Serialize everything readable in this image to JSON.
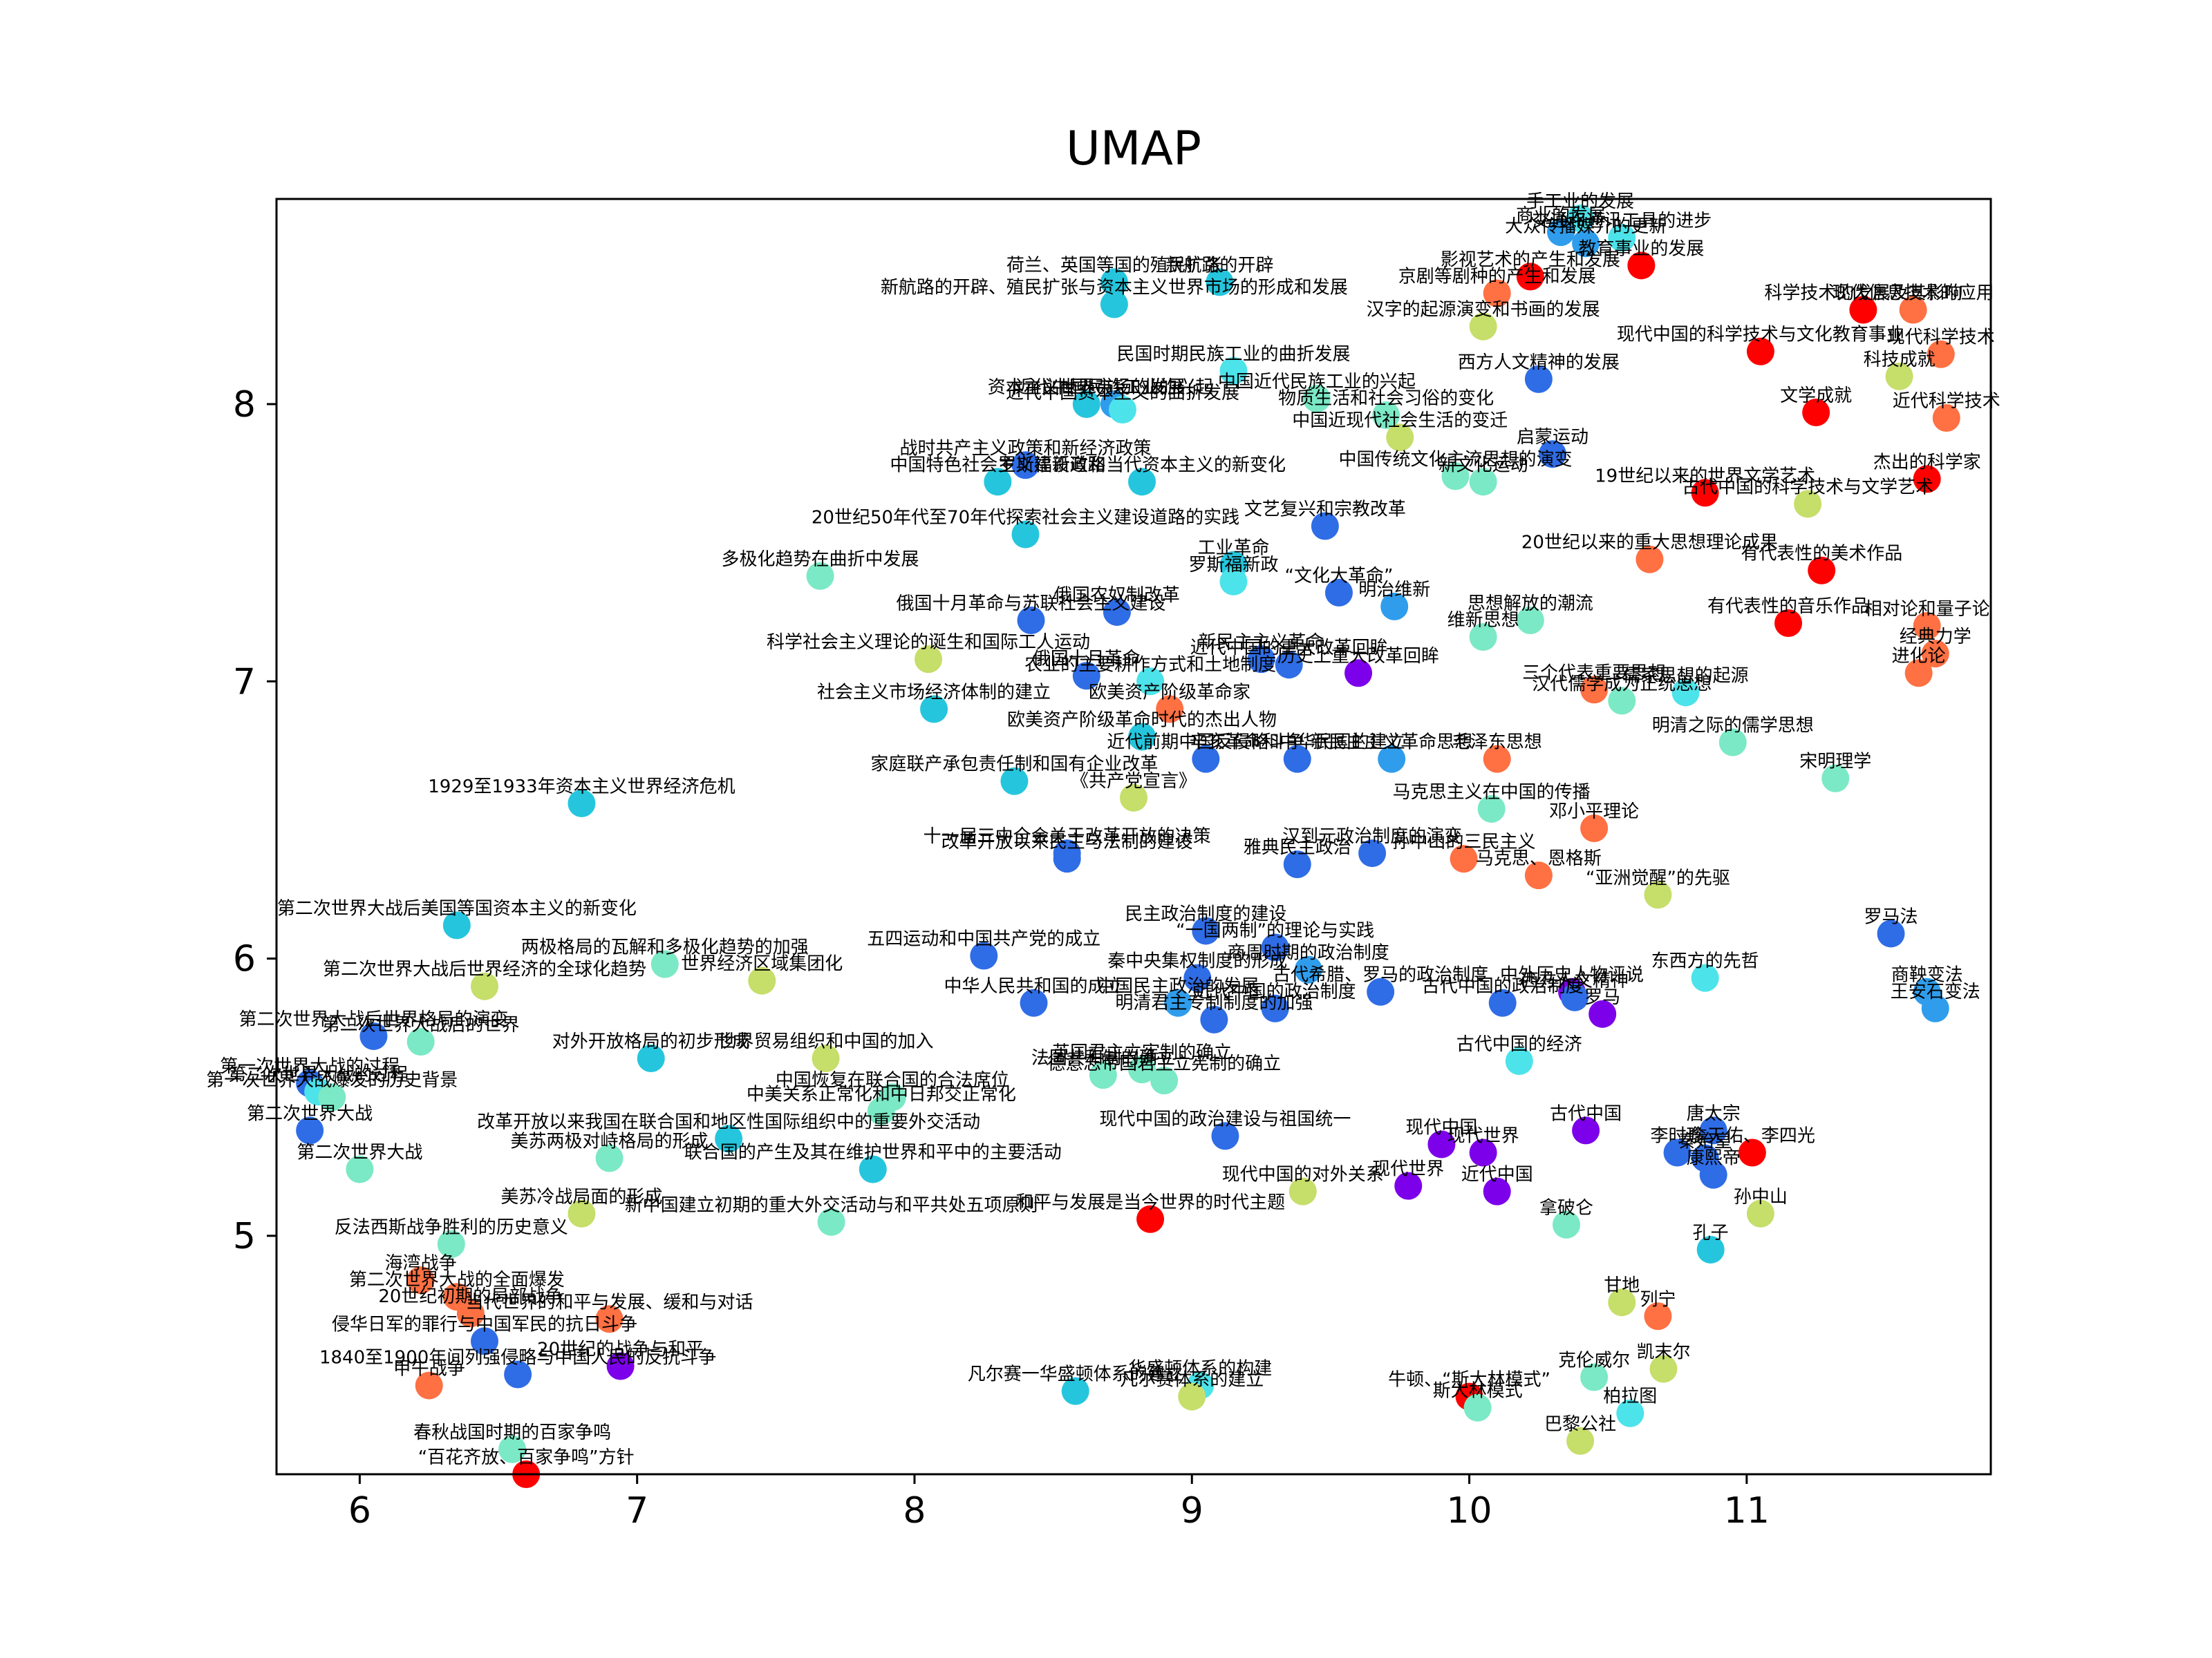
{
  "chart_data": {
    "type": "scatter",
    "title": "UMAP",
    "xlabel": "",
    "ylabel": "",
    "xlim": [
      5.7,
      11.88
    ],
    "ylim": [
      4.14,
      8.74
    ],
    "xticks": [
      6,
      7,
      8,
      9,
      10,
      11
    ],
    "yticks": [
      5,
      6,
      7,
      8
    ],
    "grid": false,
    "legend": "none",
    "colormap": "rainbow",
    "points": [
      {
        "label": "手工业的发展",
        "x": 10.4,
        "y": 8.67,
        "color": "#4de3ea"
      },
      {
        "label": "商业的发展",
        "x": 10.33,
        "y": 8.62,
        "color": "#2f9dec"
      },
      {
        "label": "交通和通讯工具的进步",
        "x": 10.55,
        "y": 8.6,
        "color": "#4de3ea"
      },
      {
        "label": "大众传播媒介的更新",
        "x": 10.42,
        "y": 8.58,
        "color": "#2f9dec"
      },
      {
        "label": "教育事业的发展",
        "x": 10.62,
        "y": 8.5,
        "color": "#ff0000"
      },
      {
        "label": "影视艺术的产生和发展",
        "x": 10.22,
        "y": 8.46,
        "color": "#ff0000"
      },
      {
        "label": "京剧等剧种的产生和发展",
        "x": 10.1,
        "y": 8.4,
        "color": "#ff7043"
      },
      {
        "label": "汉字的起源演变和书画的发展",
        "x": 10.05,
        "y": 8.28,
        "color": "#c6de6a"
      },
      {
        "label": "荷兰、英国等国的殖民扩张",
        "x": 8.72,
        "y": 8.44,
        "color": "#25c6dd"
      },
      {
        "label": "新航路的开辟",
        "x": 9.1,
        "y": 8.44,
        "color": "#25c6dd"
      },
      {
        "label": "新航路的开辟、殖民扩张与资本主义世界市场的形成和发展",
        "x": 8.72,
        "y": 8.36,
        "color": "#25c6dd"
      },
      {
        "label": "民国时期民族工业的曲折发展",
        "x": 9.15,
        "y": 8.12,
        "color": "#4de3ea"
      },
      {
        "label": "西方人文精神的发展",
        "x": 10.25,
        "y": 8.09,
        "color": "#2f6de6"
      },
      {
        "label": "现代中国的科学技术与文化教育事业",
        "x": 11.05,
        "y": 8.19,
        "color": "#ff0000"
      },
      {
        "label": "资本主义世界市场的发展",
        "x": 8.62,
        "y": 8.0,
        "color": "#25c6dd"
      },
      {
        "label": "近代中国民族工业的兴起",
        "x": 8.72,
        "y": 8.0,
        "color": "#2f9dec"
      },
      {
        "label": "近代中国资本主义的曲折发展",
        "x": 8.75,
        "y": 7.98,
        "color": "#4de3ea"
      },
      {
        "label": "中国近代民族工业的兴起",
        "x": 9.45,
        "y": 8.02,
        "color": "#7be9c5"
      },
      {
        "label": "物质生活和社会习俗的变化",
        "x": 9.7,
        "y": 7.96,
        "color": "#7be9c5"
      },
      {
        "label": "中国近现代社会生活的变迁",
        "x": 9.75,
        "y": 7.88,
        "color": "#c6de6a"
      },
      {
        "label": "战时共产主义政策和新经济政策",
        "x": 8.4,
        "y": 7.78,
        "color": "#2f6de6"
      },
      {
        "label": "中国特色社会主义建设道路",
        "x": 8.3,
        "y": 7.72,
        "color": "#25c6dd"
      },
      {
        "label": "罗斯福新政和当代资本主义的新变化",
        "x": 8.82,
        "y": 7.72,
        "color": "#25c6dd"
      },
      {
        "label": "中国传统文化主流思想的演变",
        "x": 9.95,
        "y": 7.74,
        "color": "#7be9c5"
      },
      {
        "label": "新文化运动",
        "x": 10.05,
        "y": 7.72,
        "color": "#7be9c5"
      },
      {
        "label": "启蒙运动",
        "x": 10.3,
        "y": 7.82,
        "color": "#2f6de6"
      },
      {
        "label": "19世纪以来的世界文学艺术",
        "x": 10.85,
        "y": 7.68,
        "color": "#ff0000"
      },
      {
        "label": "古代中国的科学技术与文学艺术",
        "x": 11.22,
        "y": 7.64,
        "color": "#c6de6a"
      },
      {
        "label": "杰出的科学家",
        "x": 11.65,
        "y": 7.73,
        "color": "#ff0000"
      },
      {
        "label": "科学技术的发展及其影响",
        "x": 11.42,
        "y": 8.34,
        "color": "#ff0000"
      },
      {
        "label": "现代信息技术的应用",
        "x": 11.6,
        "y": 8.34,
        "color": "#ff7043"
      },
      {
        "label": "现代科学技术",
        "x": 11.7,
        "y": 8.18,
        "color": "#ff7043"
      },
      {
        "label": "科技成就",
        "x": 11.55,
        "y": 8.1,
        "color": "#c6de6a"
      },
      {
        "label": "文学成就",
        "x": 11.25,
        "y": 7.97,
        "color": "#ff0000"
      },
      {
        "label": "近代科学技术",
        "x": 11.72,
        "y": 7.95,
        "color": "#ff7043"
      },
      {
        "label": "20世纪50年代至70年代探索社会主义建设道路的实践",
        "x": 8.4,
        "y": 7.53,
        "color": "#25c6dd"
      },
      {
        "label": "文艺复兴和宗教改革",
        "x": 9.48,
        "y": 7.56,
        "color": "#2f6de6"
      },
      {
        "label": "工业革命",
        "x": 9.15,
        "y": 7.42,
        "color": "#25c6dd"
      },
      {
        "label": "多极化趋势在曲折中发展",
        "x": 7.66,
        "y": 7.38,
        "color": "#7be9c5"
      },
      {
        "label": "罗斯福新政",
        "x": 9.15,
        "y": 7.36,
        "color": "#4de3ea"
      },
      {
        "label": "“文化大革命”",
        "x": 9.53,
        "y": 7.32,
        "color": "#2f6de6"
      },
      {
        "label": "明治维新",
        "x": 9.73,
        "y": 7.27,
        "color": "#2f9dec"
      },
      {
        "label": "20世纪以来的重大思想理论成果",
        "x": 10.65,
        "y": 7.44,
        "color": "#ff7043"
      },
      {
        "label": "有代表性的美术作品",
        "x": 11.27,
        "y": 7.4,
        "color": "#ff0000"
      },
      {
        "label": "俄国十月革命与苏联社会主义建设",
        "x": 8.42,
        "y": 7.22,
        "color": "#2f6de6"
      },
      {
        "label": "俄国农奴制改革",
        "x": 8.73,
        "y": 7.25,
        "color": "#2f6de6"
      },
      {
        "label": "思想解放的潮流",
        "x": 10.22,
        "y": 7.22,
        "color": "#7be9c5"
      },
      {
        "label": "维新思想",
        "x": 10.05,
        "y": 7.16,
        "color": "#7be9c5"
      },
      {
        "label": "有代表性的音乐作品",
        "x": 11.15,
        "y": 7.21,
        "color": "#ff0000"
      },
      {
        "label": "相对论和量子论",
        "x": 11.65,
        "y": 7.2,
        "color": "#ff7043"
      },
      {
        "label": "经典力学",
        "x": 11.68,
        "y": 7.1,
        "color": "#ff7043"
      },
      {
        "label": "进化论",
        "x": 11.62,
        "y": 7.03,
        "color": "#ff7043"
      },
      {
        "label": "科学社会主义理论的诞生和国际工人运动",
        "x": 8.05,
        "y": 7.08,
        "color": "#c6de6a"
      },
      {
        "label": "新民主主义革命",
        "x": 9.25,
        "y": 7.08,
        "color": "#2f6de6"
      },
      {
        "label": "近代中国的重大改革回眸",
        "x": 9.35,
        "y": 7.06,
        "color": "#2f6de6"
      },
      {
        "label": "历史上重大改革回眸",
        "x": 9.6,
        "y": 7.03,
        "color": "#7d00ea"
      },
      {
        "label": "俄国十月革命",
        "x": 8.62,
        "y": 7.02,
        "color": "#2f6de6"
      },
      {
        "label": "农业的主要耕作方式和土地制度",
        "x": 8.85,
        "y": 7.0,
        "color": "#4de3ea"
      },
      {
        "label": "欧美资产阶级革命家",
        "x": 8.92,
        "y": 6.9,
        "color": "#ff7043"
      },
      {
        "label": "社会主义市场经济体制的建立",
        "x": 8.07,
        "y": 6.9,
        "color": "#25c6dd"
      },
      {
        "label": "三个代表重要思想",
        "x": 10.45,
        "y": 6.97,
        "color": "#ff7043"
      },
      {
        "label": "汉代儒学成为正统思想",
        "x": 10.55,
        "y": 6.93,
        "color": "#7be9c5"
      },
      {
        "label": "儒家思想的起源",
        "x": 10.78,
        "y": 6.96,
        "color": "#4de3ea"
      },
      {
        "label": "明清之际的儒学思想",
        "x": 10.95,
        "y": 6.78,
        "color": "#7be9c5"
      },
      {
        "label": "宋明理学",
        "x": 11.32,
        "y": 6.65,
        "color": "#7be9c5"
      },
      {
        "label": "欧美资产阶级革命时代的杰出人物",
        "x": 8.82,
        "y": 6.8,
        "color": "#25c6dd"
      },
      {
        "label": "近代前期中国反侵略斗争",
        "x": 9.05,
        "y": 6.72,
        "color": "#2f6de6"
      },
      {
        "label": "辛亥革命和中华民国的建立",
        "x": 9.38,
        "y": 6.72,
        "color": "#2f6de6"
      },
      {
        "label": "新民主主义革命思想",
        "x": 9.72,
        "y": 6.72,
        "color": "#2f9dec"
      },
      {
        "label": "毛泽东思想",
        "x": 10.1,
        "y": 6.72,
        "color": "#ff7043"
      },
      {
        "label": "家庭联产承包责任制和国有企业改革",
        "x": 8.36,
        "y": 6.64,
        "color": "#25c6dd"
      },
      {
        "label": "《共产党宣言》",
        "x": 8.79,
        "y": 6.58,
        "color": "#c6de6a"
      },
      {
        "label": "1929至1933年资本主义世界经济危机",
        "x": 6.8,
        "y": 6.56,
        "color": "#25c6dd"
      },
      {
        "label": "马克思主义在中国的传播",
        "x": 10.08,
        "y": 6.54,
        "color": "#7be9c5"
      },
      {
        "label": "邓小平理论",
        "x": 10.45,
        "y": 6.47,
        "color": "#ff7043"
      },
      {
        "label": "十一届三中全会关于改革开放的决策",
        "x": 8.55,
        "y": 6.38,
        "color": "#2f6de6"
      },
      {
        "label": "改革开放以来民主与法制的建设",
        "x": 8.55,
        "y": 6.36,
        "color": "#2f6de6"
      },
      {
        "label": "雅典民主政治",
        "x": 9.38,
        "y": 6.34,
        "color": "#2f6de6"
      },
      {
        "label": "孙中山的三民主义",
        "x": 9.98,
        "y": 6.36,
        "color": "#ff7043"
      },
      {
        "label": "马克思、恩格斯",
        "x": 10.25,
        "y": 6.3,
        "color": "#ff7043"
      },
      {
        "label": "“亚洲觉醒”的先驱",
        "x": 10.68,
        "y": 6.23,
        "color": "#c6de6a"
      },
      {
        "label": "汉到元政治制度的演变",
        "x": 9.65,
        "y": 6.38,
        "color": "#2f6de6"
      },
      {
        "label": "第二次世界大战后美国等国资本主义的新变化",
        "x": 6.35,
        "y": 6.12,
        "color": "#25c6dd"
      },
      {
        "label": "民主政治制度的建设",
        "x": 9.05,
        "y": 6.1,
        "color": "#2f6de6"
      },
      {
        "label": "“一国两制”的理论与实践",
        "x": 9.3,
        "y": 6.04,
        "color": "#2f6de6"
      },
      {
        "label": "五四运动和中国共产党的成立",
        "x": 8.25,
        "y": 6.01,
        "color": "#2f6de6"
      },
      {
        "label": "商周时期的政治制度",
        "x": 9.42,
        "y": 5.96,
        "color": "#2f9dec"
      },
      {
        "label": "罗马法",
        "x": 11.52,
        "y": 6.09,
        "color": "#2f6de6"
      },
      {
        "label": "两极格局的瓦解和多极化趋势的加强",
        "x": 7.1,
        "y": 5.98,
        "color": "#7be9c5"
      },
      {
        "label": "第二次世界大战后世界经济的全球化趋势",
        "x": 6.45,
        "y": 5.9,
        "color": "#c6de6a"
      },
      {
        "label": "世界经济区域集团化",
        "x": 7.45,
        "y": 5.92,
        "color": "#c6de6a"
      },
      {
        "label": "秦中央集权制度的形成",
        "x": 9.02,
        "y": 5.93,
        "color": "#2f6de6"
      },
      {
        "label": "古代希腊、罗马的政治制度",
        "x": 9.68,
        "y": 5.88,
        "color": "#2f6de6"
      },
      {
        "label": "中外历史人物评说",
        "x": 10.37,
        "y": 5.88,
        "color": "#7d00ea"
      },
      {
        "label": "东西方的先哲",
        "x": 10.85,
        "y": 5.93,
        "color": "#4de3ea"
      },
      {
        "label": "商鞅变法",
        "x": 11.65,
        "y": 5.88,
        "color": "#2f9dec"
      },
      {
        "label": "中华人民共和国的成立",
        "x": 8.43,
        "y": 5.84,
        "color": "#2f6de6"
      },
      {
        "label": "中国民主政治的发展",
        "x": 8.95,
        "y": 5.84,
        "color": "#2f9dec"
      },
      {
        "label": "近代中国的政治制度",
        "x": 9.3,
        "y": 5.82,
        "color": "#2f6de6"
      },
      {
        "label": "明清君主专制制度的加强",
        "x": 9.08,
        "y": 5.78,
        "color": "#2f6de6"
      },
      {
        "label": "古代中国的政治制度",
        "x": 10.12,
        "y": 5.84,
        "color": "#2f6de6"
      },
      {
        "label": "西方人文精神",
        "x": 10.38,
        "y": 5.86,
        "color": "#2f6de6"
      },
      {
        "label": "罗马",
        "x": 10.48,
        "y": 5.8,
        "color": "#7d00ea"
      },
      {
        "label": "王安石变法",
        "x": 11.68,
        "y": 5.82,
        "color": "#2f9dec"
      },
      {
        "label": "第二次世界大战后世界格局的演变",
        "x": 6.05,
        "y": 5.72,
        "color": "#2f6de6"
      },
      {
        "label": "第二次世界大战后的世界",
        "x": 6.22,
        "y": 5.7,
        "color": "#7be9c5"
      },
      {
        "label": "对外开放格局的初步形成",
        "x": 7.05,
        "y": 5.64,
        "color": "#25c6dd"
      },
      {
        "label": "世界贸易组织和中国的加入",
        "x": 7.68,
        "y": 5.64,
        "color": "#c6de6a"
      },
      {
        "label": "古代中国的经济",
        "x": 10.18,
        "y": 5.63,
        "color": "#4de3ea"
      },
      {
        "label": "法国共和制的确立",
        "x": 8.68,
        "y": 5.58,
        "color": "#7be9c5"
      },
      {
        "label": "英国君主立宪制的确立",
        "x": 8.82,
        "y": 5.6,
        "color": "#7be9c5"
      },
      {
        "label": "德意志帝国君主立宪制的确立",
        "x": 8.9,
        "y": 5.56,
        "color": "#7be9c5"
      },
      {
        "label": "第一次世界大战的过程",
        "x": 5.82,
        "y": 5.55,
        "color": "#2f6de6"
      },
      {
        "label": "第二次世界大战的过程",
        "x": 5.85,
        "y": 5.52,
        "color": "#4de3ea"
      },
      {
        "label": "第一次世界大战爆发的历史背景",
        "x": 5.9,
        "y": 5.5,
        "color": "#7be9c5"
      },
      {
        "label": "第二次世界大战",
        "x": 5.82,
        "y": 5.38,
        "color": "#2f6de6"
      },
      {
        "label": "中美关系正常化和中日邦交正常化",
        "x": 7.88,
        "y": 5.45,
        "color": "#7be9c5"
      },
      {
        "label": "中国恢复在联合国的合法席位",
        "x": 7.92,
        "y": 5.5,
        "color": "#7be9c5"
      },
      {
        "label": "现代中国的政治建设与祖国统一",
        "x": 9.12,
        "y": 5.36,
        "color": "#2f6de6"
      },
      {
        "label": "现代中国",
        "x": 9.9,
        "y": 5.33,
        "color": "#7d00ea"
      },
      {
        "label": "现代世界",
        "x": 10.05,
        "y": 5.3,
        "color": "#7d00ea"
      },
      {
        "label": "古代中国",
        "x": 10.42,
        "y": 5.38,
        "color": "#7d00ea"
      },
      {
        "label": "唐太宗",
        "x": 10.88,
        "y": 5.38,
        "color": "#2f6de6"
      },
      {
        "label": "李时珍",
        "x": 10.75,
        "y": 5.3,
        "color": "#2f6de6"
      },
      {
        "label": "秦始皇",
        "x": 10.85,
        "y": 5.28,
        "color": "#2f6de6"
      },
      {
        "label": "詹天佑、李四光",
        "x": 11.02,
        "y": 5.3,
        "color": "#ff0000"
      },
      {
        "label": "康熙帝",
        "x": 10.88,
        "y": 5.22,
        "color": "#2f6de6"
      },
      {
        "label": "改革开放以来我国在联合国和地区性国际组织中的重要外交活动",
        "x": 7.33,
        "y": 5.35,
        "color": "#25c6dd"
      },
      {
        "label": "美苏两极对峙格局的形成",
        "x": 6.9,
        "y": 5.28,
        "color": "#7be9c5"
      },
      {
        "label": "联合国的产生及其在维护世界和平中的主要活动",
        "x": 7.85,
        "y": 5.24,
        "color": "#25c6dd"
      },
      {
        "label": "第二次世界大战",
        "x": 6.0,
        "y": 5.24,
        "color": "#7be9c5"
      },
      {
        "label": "现代中国的对外关系",
        "x": 9.4,
        "y": 5.16,
        "color": "#c6de6a"
      },
      {
        "label": "现代世界",
        "x": 9.78,
        "y": 5.18,
        "color": "#7d00ea"
      },
      {
        "label": "近代中国",
        "x": 10.1,
        "y": 5.16,
        "color": "#7d00ea"
      },
      {
        "label": "孙中山",
        "x": 11.05,
        "y": 5.08,
        "color": "#c6de6a"
      },
      {
        "label": "美苏冷战局面的形成",
        "x": 6.8,
        "y": 5.08,
        "color": "#c6de6a"
      },
      {
        "label": "新中国建立初期的重大外交活动与和平共处五项原则",
        "x": 7.7,
        "y": 5.05,
        "color": "#7be9c5"
      },
      {
        "label": "和平与发展是当今世界的时代主题",
        "x": 8.85,
        "y": 5.06,
        "color": "#ff0000"
      },
      {
        "label": "拿破仑",
        "x": 10.35,
        "y": 5.04,
        "color": "#7be9c5"
      },
      {
        "label": "反法西斯战争胜利的历史意义",
        "x": 6.33,
        "y": 4.97,
        "color": "#7be9c5"
      },
      {
        "label": "孔子",
        "x": 10.87,
        "y": 4.95,
        "color": "#25c6dd"
      },
      {
        "label": "海湾战争",
        "x": 6.22,
        "y": 4.84,
        "color": "#ff7043"
      },
      {
        "label": "甘地",
        "x": 10.55,
        "y": 4.76,
        "color": "#c6de6a"
      },
      {
        "label": "列宁",
        "x": 10.68,
        "y": 4.71,
        "color": "#ff7043"
      },
      {
        "label": "第二次世界大战的全面爆发",
        "x": 6.35,
        "y": 4.78,
        "color": "#ff7043"
      },
      {
        "label": "20世纪初期的局部战争",
        "x": 6.4,
        "y": 4.72,
        "color": "#ff7043"
      },
      {
        "label": "当代世界的和平与发展、缓和与对话",
        "x": 6.9,
        "y": 4.7,
        "color": "#ff7043"
      },
      {
        "label": "侵华日军的罪行与中国军民的抗日斗争",
        "x": 6.45,
        "y": 4.62,
        "color": "#2f6de6"
      },
      {
        "label": "1840至1900年间列强侵略与中国人民的反抗斗争",
        "x": 6.57,
        "y": 4.5,
        "color": "#2f6de6"
      },
      {
        "label": "20世纪的战争与和平",
        "x": 6.94,
        "y": 4.53,
        "color": "#7d00ea"
      },
      {
        "label": "甲午战争",
        "x": 6.25,
        "y": 4.46,
        "color": "#ff7043"
      },
      {
        "label": "凯末尔",
        "x": 10.7,
        "y": 4.52,
        "color": "#c6de6a"
      },
      {
        "label": "克伦威尔",
        "x": 10.45,
        "y": 4.49,
        "color": "#7be9c5"
      },
      {
        "label": "华盛顿体系的构建",
        "x": 9.03,
        "y": 4.46,
        "color": "#4de3ea"
      },
      {
        "label": "凡尔赛一华盛顿体系的建立",
        "x": 8.58,
        "y": 4.44,
        "color": "#25c6dd"
      },
      {
        "label": "凡尔赛体系的建立",
        "x": 9.0,
        "y": 4.42,
        "color": "#c6de6a"
      },
      {
        "label": "牛顿、“斯大林模式”",
        "x": 10.0,
        "y": 4.42,
        "color": "#ff0000"
      },
      {
        "label": "斯大林模式",
        "x": 10.03,
        "y": 4.38,
        "color": "#7be9c5"
      },
      {
        "label": "柏拉图",
        "x": 10.58,
        "y": 4.36,
        "color": "#4de3ea"
      },
      {
        "label": "巴黎公社",
        "x": 10.4,
        "y": 4.26,
        "color": "#c6de6a"
      },
      {
        "label": "春秋战国时期的百家争鸣",
        "x": 6.55,
        "y": 4.23,
        "color": "#7be9c5"
      },
      {
        "label": "“百花齐放、百家争鸣”方针",
        "x": 6.6,
        "y": 4.14,
        "color": "#ff0000"
      }
    ]
  }
}
